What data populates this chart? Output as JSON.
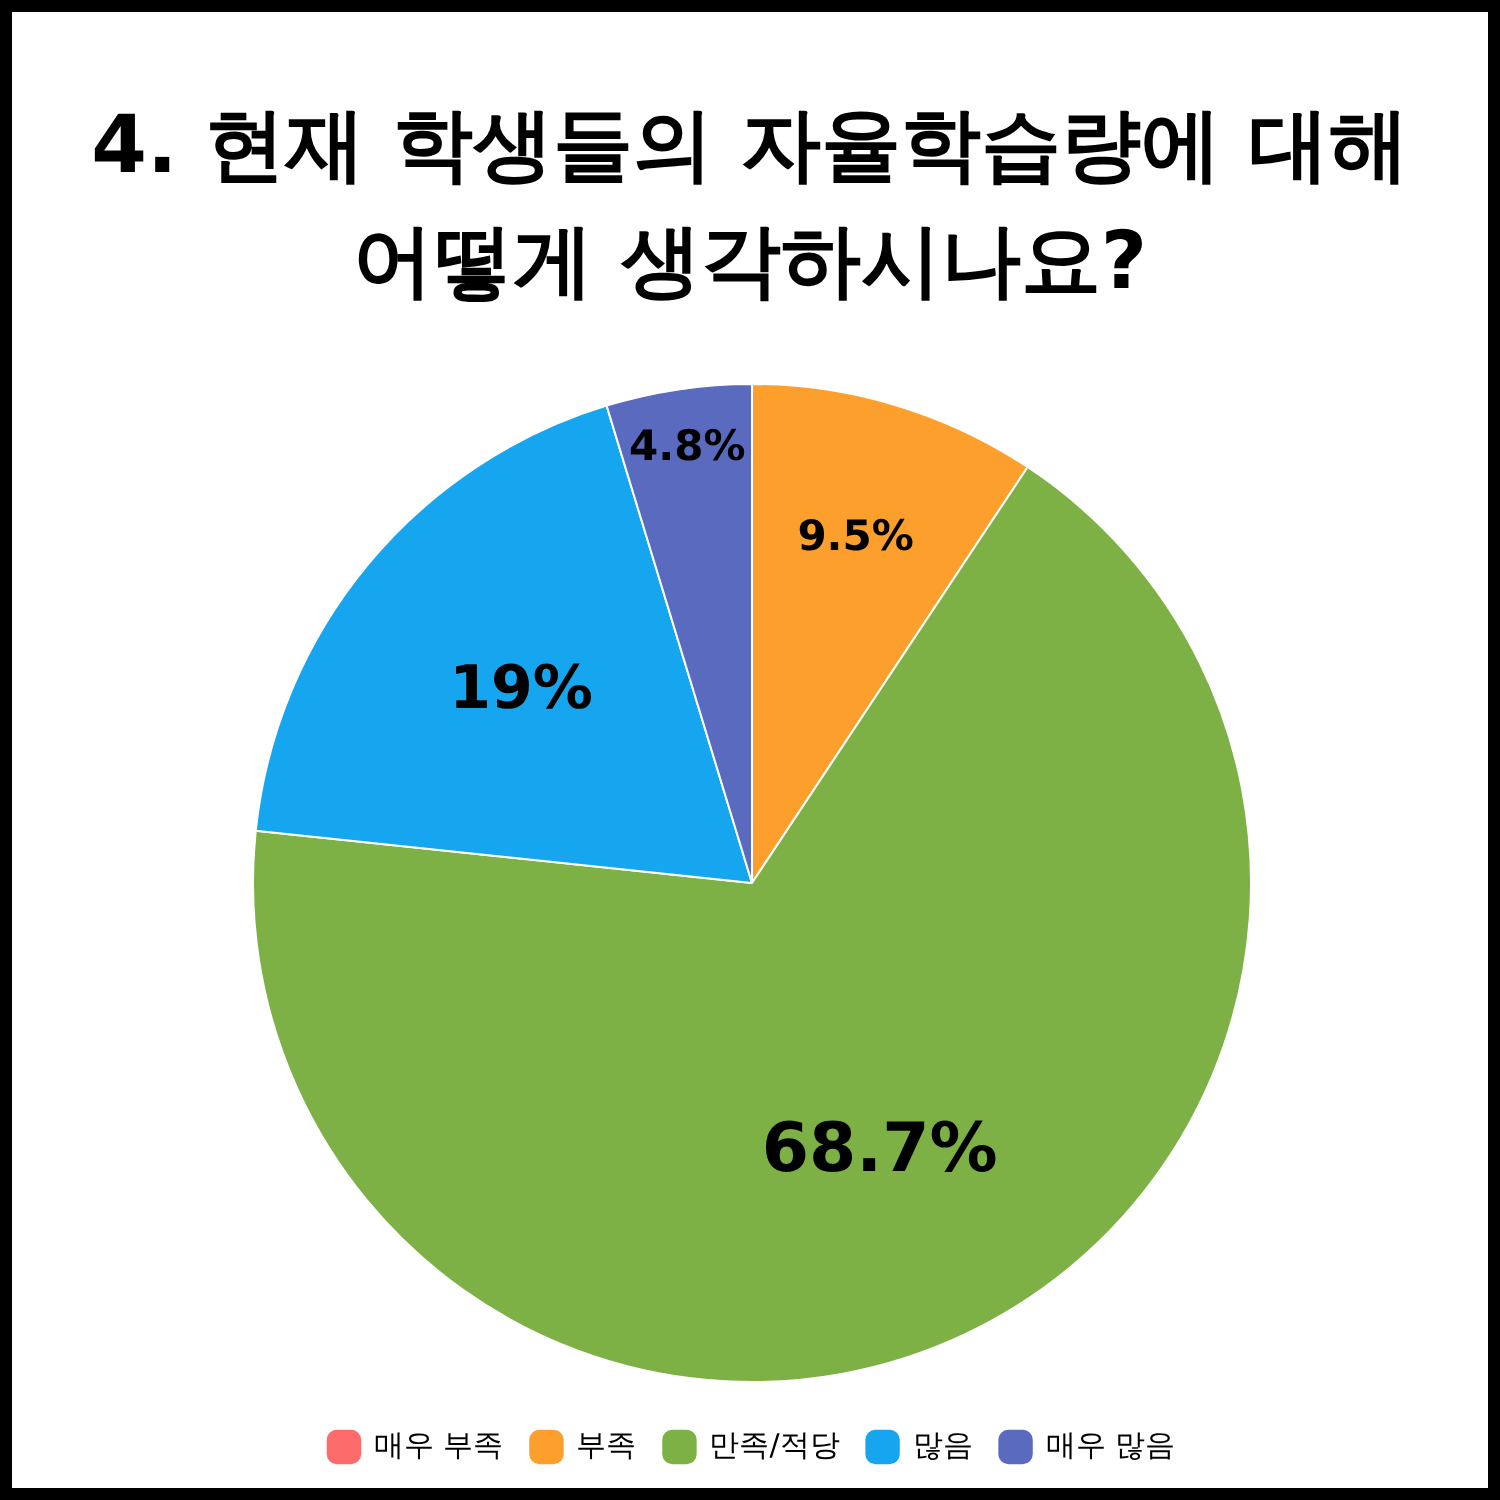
{
  "chart_data": {
    "type": "pie",
    "title": "4. 현재 학생들의 자율학습량에 대해 어떻게 생각하시나요?",
    "categories": [
      "매우 부족",
      "부족",
      "만족/적당",
      "많음",
      "매우 많음"
    ],
    "values": [
      0,
      9.5,
      68.7,
      19,
      4.8
    ],
    "colors": [
      "#fe6b6b",
      "#fd9f2d",
      "#7db146",
      "#16a6f0",
      "#5a6bbf"
    ],
    "value_labels": [
      null,
      "9.5%",
      "68.7%",
      "19%",
      "4.8%"
    ],
    "legend": "bottom"
  }
}
